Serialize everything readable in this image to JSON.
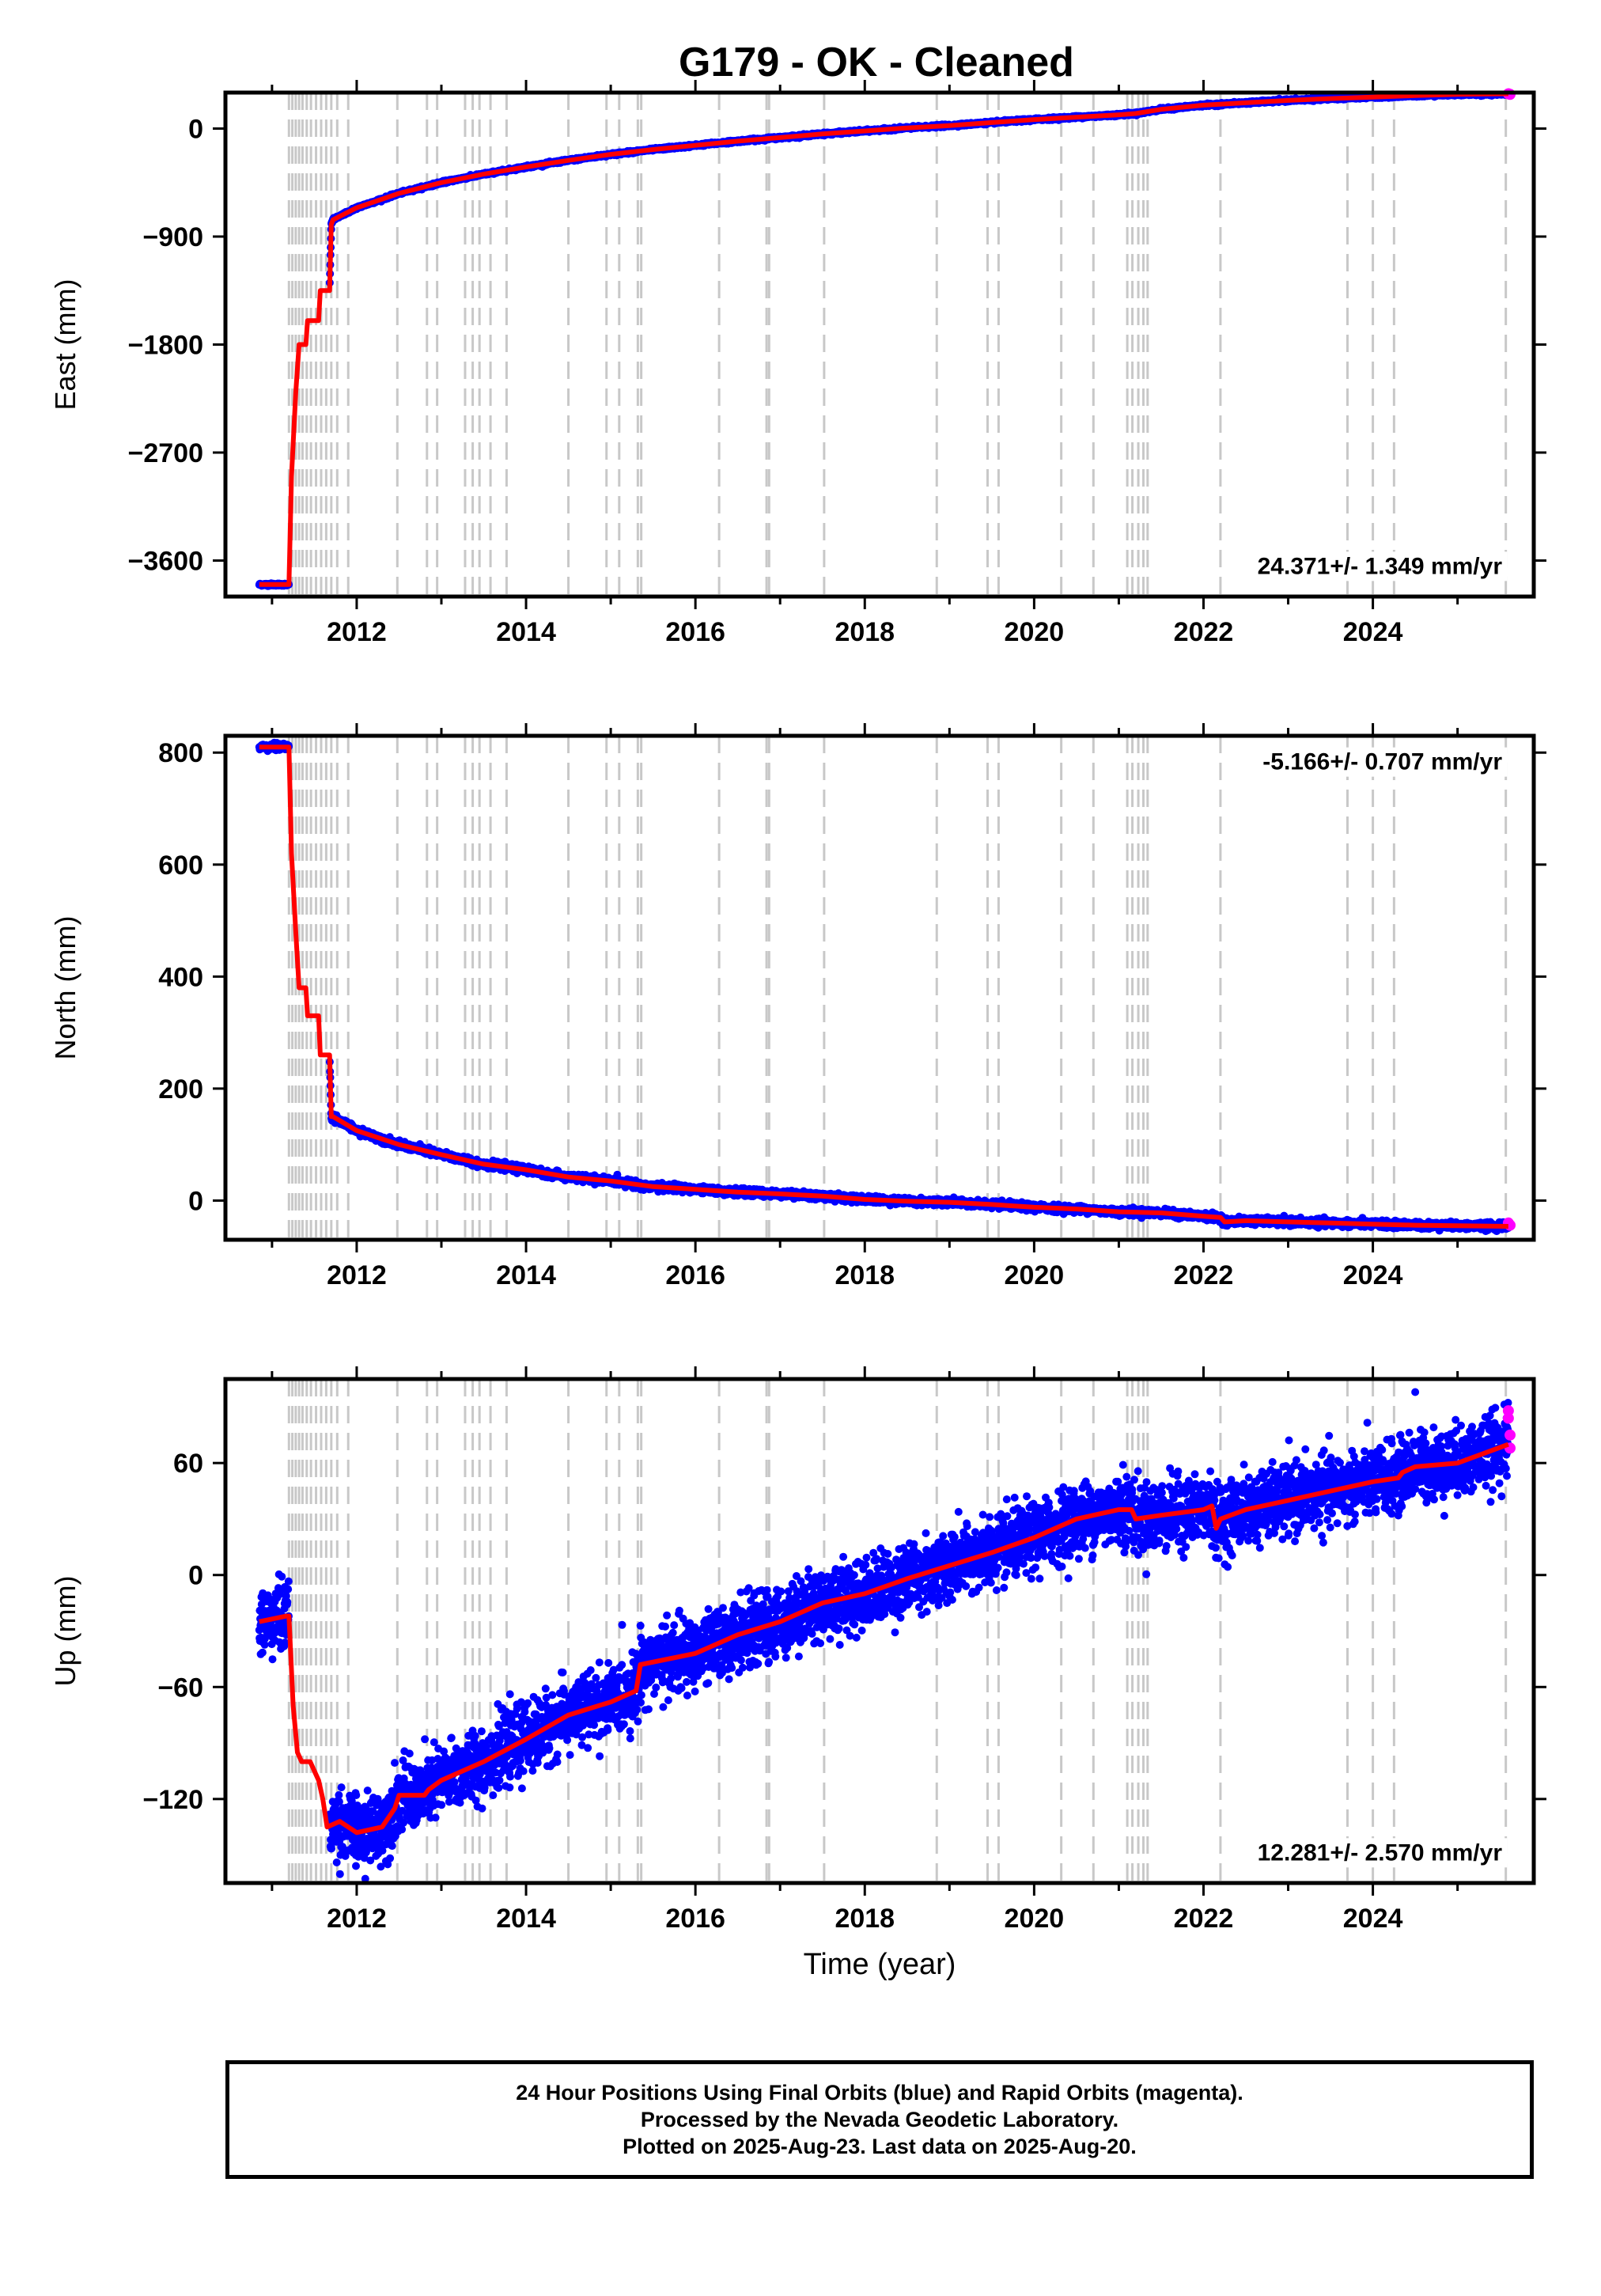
{
  "title": "G179  - OK - Cleaned",
  "chart_data": [
    {
      "type": "scatter",
      "name": "east",
      "ylabel": "East (mm)",
      "xlabel": "",
      "xlim": [
        2010.45,
        2025.9
      ],
      "ylim": [
        -3900,
        300
      ],
      "yticks": [
        0,
        -900,
        -1800,
        -2700,
        -3600
      ],
      "xticks": [
        2012,
        2014,
        2016,
        2018,
        2020,
        2022,
        2024
      ],
      "rate_label": "24.371+/- 1.349 mm/yr",
      "rate_position": "bottom-right",
      "model_line_knots": [
        [
          2010.85,
          -3800
        ],
        [
          2011.17,
          -3800
        ],
        [
          2011.2,
          -3800
        ],
        [
          2011.23,
          -2900
        ],
        [
          2011.28,
          -2200
        ],
        [
          2011.32,
          -1800
        ],
        [
          2011.4,
          -1800
        ],
        [
          2011.42,
          -1600
        ],
        [
          2011.55,
          -1600
        ],
        [
          2011.57,
          -1350
        ],
        [
          2011.68,
          -1350
        ],
        [
          2011.7,
          -800
        ],
        [
          2011.72,
          -760
        ],
        [
          2012.0,
          -660
        ],
        [
          2012.5,
          -540
        ],
        [
          2013.0,
          -450
        ],
        [
          2013.5,
          -380
        ],
        [
          2014.0,
          -320
        ],
        [
          2014.5,
          -265
        ],
        [
          2015.0,
          -215
        ],
        [
          2015.5,
          -175
        ],
        [
          2016.0,
          -140
        ],
        [
          2016.5,
          -105
        ],
        [
          2017.0,
          -75
        ],
        [
          2017.5,
          -45
        ],
        [
          2018.0,
          -20
        ],
        [
          2018.5,
          5
        ],
        [
          2019.0,
          25
        ],
        [
          2019.5,
          50
        ],
        [
          2020.0,
          75
        ],
        [
          2020.5,
          95
        ],
        [
          2021.0,
          115
        ],
        [
          2021.2,
          125
        ],
        [
          2021.5,
          160
        ],
        [
          2022.0,
          195
        ],
        [
          2022.5,
          215
        ],
        [
          2023.0,
          235
        ],
        [
          2023.5,
          250
        ],
        [
          2024.0,
          262
        ],
        [
          2024.5,
          275
        ],
        [
          2025.0,
          285
        ],
        [
          2025.6,
          290
        ]
      ],
      "final_orbit_points": {
        "color": "#0000ff",
        "x_range": [
          2010.85,
          2025.6
        ],
        "scatter_mm": 5
      },
      "rapid_orbit_points": {
        "color": "#ff00ff",
        "x": [
          2025.6,
          2025.62
        ],
        "y": [
          290,
          285
        ]
      }
    },
    {
      "type": "scatter",
      "name": "north",
      "ylabel": "North (mm)",
      "xlabel": "",
      "xlim": [
        2010.45,
        2025.9
      ],
      "ylim": [
        -70,
        830
      ],
      "yticks": [
        800,
        600,
        400,
        200,
        0
      ],
      "xticks": [
        2012,
        2014,
        2016,
        2018,
        2020,
        2022,
        2024
      ],
      "rate_label": "-5.166+/- 0.707 mm/yr",
      "rate_position": "top-right",
      "model_line_knots": [
        [
          2010.85,
          810
        ],
        [
          2011.17,
          810
        ],
        [
          2011.2,
          810
        ],
        [
          2011.23,
          620
        ],
        [
          2011.28,
          480
        ],
        [
          2011.32,
          380
        ],
        [
          2011.4,
          380
        ],
        [
          2011.42,
          330
        ],
        [
          2011.55,
          330
        ],
        [
          2011.57,
          260
        ],
        [
          2011.68,
          260
        ],
        [
          2011.7,
          150
        ],
        [
          2011.72,
          150
        ],
        [
          2012.0,
          125
        ],
        [
          2012.5,
          100
        ],
        [
          2013.0,
          82
        ],
        [
          2013.5,
          65
        ],
        [
          2014.0,
          55
        ],
        [
          2014.5,
          42
        ],
        [
          2015.0,
          35
        ],
        [
          2015.5,
          25
        ],
        [
          2016.0,
          20
        ],
        [
          2016.5,
          15
        ],
        [
          2017.0,
          12
        ],
        [
          2017.5,
          8
        ],
        [
          2018.0,
          2
        ],
        [
          2018.5,
          -1
        ],
        [
          2019.0,
          -3
        ],
        [
          2019.5,
          -7
        ],
        [
          2020.0,
          -12
        ],
        [
          2020.5,
          -15
        ],
        [
          2021.0,
          -20
        ],
        [
          2021.5,
          -22
        ],
        [
          2022.0,
          -28
        ],
        [
          2022.2,
          -30
        ],
        [
          2022.25,
          -38
        ],
        [
          2022.5,
          -36
        ],
        [
          2023.0,
          -38
        ],
        [
          2023.5,
          -40
        ],
        [
          2024.0,
          -42
        ],
        [
          2024.5,
          -44
        ],
        [
          2025.0,
          -45
        ],
        [
          2025.6,
          -46
        ]
      ],
      "final_orbit_points": {
        "color": "#0000ff",
        "x_range": [
          2010.85,
          2025.6
        ],
        "scatter_mm": 3
      },
      "rapid_orbit_points": {
        "color": "#ff00ff",
        "x": [
          2025.6,
          2025.62
        ],
        "y": [
          -40,
          -44
        ]
      }
    },
    {
      "type": "scatter",
      "name": "up",
      "ylabel": "Up (mm)",
      "xlabel": "Time (year)",
      "xlim": [
        2010.45,
        2025.9
      ],
      "ylim": [
        -165,
        105
      ],
      "yticks": [
        60,
        0,
        -60,
        -120
      ],
      "xticks": [
        2012,
        2014,
        2016,
        2018,
        2020,
        2022,
        2024
      ],
      "rate_label": "12.281+/- 2.570 mm/yr",
      "rate_position": "bottom-right",
      "model_line_knots": [
        [
          2010.85,
          -25
        ],
        [
          2011.17,
          -22
        ],
        [
          2011.2,
          -22
        ],
        [
          2011.25,
          -70
        ],
        [
          2011.3,
          -95
        ],
        [
          2011.35,
          -100
        ],
        [
          2011.45,
          -100
        ],
        [
          2011.55,
          -110
        ],
        [
          2011.6,
          -120
        ],
        [
          2011.65,
          -135
        ],
        [
          2011.8,
          -132
        ],
        [
          2012.0,
          -138
        ],
        [
          2012.3,
          -135
        ],
        [
          2012.45,
          -125
        ],
        [
          2012.5,
          -118
        ],
        [
          2012.8,
          -118
        ],
        [
          2012.85,
          -115
        ],
        [
          2013.0,
          -110
        ],
        [
          2013.5,
          -100
        ],
        [
          2014.0,
          -88
        ],
        [
          2014.5,
          -75
        ],
        [
          2015.0,
          -68
        ],
        [
          2015.3,
          -62
        ],
        [
          2015.35,
          -48
        ],
        [
          2016.0,
          -42
        ],
        [
          2016.5,
          -32
        ],
        [
          2017.0,
          -25
        ],
        [
          2017.5,
          -15
        ],
        [
          2018.0,
          -10
        ],
        [
          2018.5,
          -2
        ],
        [
          2019.0,
          5
        ],
        [
          2019.5,
          12
        ],
        [
          2020.0,
          20
        ],
        [
          2020.5,
          30
        ],
        [
          2021.0,
          35
        ],
        [
          2021.15,
          35
        ],
        [
          2021.2,
          30
        ],
        [
          2021.5,
          32
        ],
        [
          2022.0,
          35
        ],
        [
          2022.1,
          37
        ],
        [
          2022.15,
          25
        ],
        [
          2022.2,
          30
        ],
        [
          2022.5,
          35
        ],
        [
          2023.0,
          40
        ],
        [
          2023.5,
          45
        ],
        [
          2024.0,
          50
        ],
        [
          2024.3,
          52
        ],
        [
          2024.35,
          55
        ],
        [
          2024.5,
          58
        ],
        [
          2025.0,
          60
        ],
        [
          2025.6,
          70
        ]
      ],
      "final_orbit_points": {
        "color": "#0000ff",
        "x_range": [
          2010.85,
          2025.6
        ],
        "scatter_mm": 9
      },
      "rapid_orbit_points": {
        "color": "#ff00ff",
        "x": [
          2025.6,
          2025.6,
          2025.62,
          2025.62
        ],
        "y": [
          88,
          84,
          75,
          68
        ]
      }
    }
  ],
  "equipment_change_lines_years": [
    2011.2,
    2011.24,
    2011.28,
    2011.32,
    2011.36,
    2011.41,
    2011.46,
    2011.52,
    2011.58,
    2011.64,
    2011.7,
    2011.77,
    2011.9,
    2012.48,
    2012.83,
    2012.95,
    2013.28,
    2013.37,
    2013.45,
    2013.58,
    2013.77,
    2014.5,
    2014.95,
    2015.1,
    2015.32,
    2015.36,
    2016.28,
    2016.84,
    2016.87,
    2017.52,
    2018.85,
    2019.45,
    2019.58,
    2020.32,
    2020.7,
    2021.1,
    2021.16,
    2021.23,
    2021.29,
    2021.34,
    2022.2,
    2023.7,
    2024.0,
    2024.25,
    2025.57
  ],
  "colors": {
    "final_orbits": "#0000ff",
    "rapid_orbits": "#ff00ff",
    "model": "#ff0000",
    "equipment_lines": "#c8c8c8",
    "frame": "#000000"
  },
  "footer": {
    "line1": "24 Hour Positions Using Final Orbits (blue) and Rapid Orbits (magenta).",
    "line2": "Processed by the Nevada Geodetic Laboratory.",
    "line3": "Plotted on 2025-Aug-23. Last data on 2025-Aug-20."
  }
}
